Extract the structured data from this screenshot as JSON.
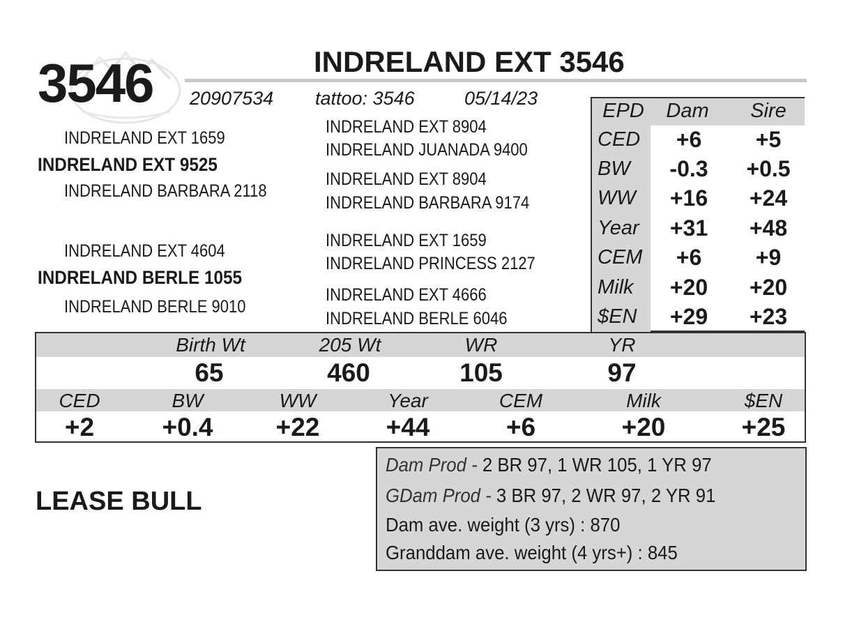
{
  "lot_number": "3546",
  "name": "INDRELAND EXT 3546",
  "registration": "20907534",
  "tattoo": "tattoo: 3546",
  "birth_date": "05/14/23",
  "pedigree": {
    "sire": "INDRELAND EXT 9525",
    "sire_sire": "INDRELAND EXT 1659",
    "sire_dam": "INDRELAND BARBARA 2118",
    "sire_sire_sire": "INDRELAND EXT 8904",
    "sire_sire_dam": "INDRELAND JUANADA 9400",
    "sire_dam_sire": "INDRELAND EXT 8904",
    "sire_dam_dam": "INDRELAND BARBARA 9174",
    "dam": "INDRELAND BERLE 1055",
    "dam_sire": "INDRELAND EXT 4604",
    "dam_dam": "INDRELAND BERLE 9010",
    "dam_sire_sire": "INDRELAND EXT 1659",
    "dam_sire_dam": "INDRELAND PRINCESS 2127",
    "dam_dam_sire": "INDRELAND EXT 4666",
    "dam_dam_dam": "INDRELAND BERLE 6046"
  },
  "epd_table": {
    "headers": [
      "EPD",
      "Dam",
      "Sire"
    ],
    "rows": [
      {
        "label": "CED",
        "dam": "+6",
        "sire": "+5"
      },
      {
        "label": "BW",
        "dam": "-0.3",
        "sire": "+0.5"
      },
      {
        "label": "WW",
        "dam": "+16",
        "sire": "+24"
      },
      {
        "label": "Year",
        "dam": "+31",
        "sire": "+48"
      },
      {
        "label": "CEM",
        "dam": "+6",
        "sire": "+9"
      },
      {
        "label": "Milk",
        "dam": "+20",
        "sire": "+20"
      },
      {
        "label": "$EN",
        "dam": "+29",
        "sire": "+23"
      }
    ]
  },
  "performance": {
    "headers": [
      "Birth Wt",
      "205 Wt",
      "WR",
      "YR"
    ],
    "values": [
      "65",
      "460",
      "105",
      "97"
    ]
  },
  "bull_epds": {
    "headers": [
      "CED",
      "BW",
      "WW",
      "Year",
      "CEM",
      "Milk",
      "$EN"
    ],
    "values": [
      "+2",
      "+0.4",
      "+22",
      "+44",
      "+6",
      "+20",
      "+25"
    ]
  },
  "status": "LEASE BULL",
  "production": {
    "dam_prod_label": "Dam Prod -",
    "dam_prod_value": "2 BR 97, 1 WR 105, 1 YR 97",
    "gdam_prod_label": "GDam Prod -",
    "gdam_prod_value": "3 BR 97, 2 WR 97, 2 YR 91",
    "dam_ave_weight": "Dam ave. weight (3 yrs) : 870",
    "granddam_ave_weight": "Granddam ave. weight (4 yrs+) : 845"
  },
  "colors": {
    "shade": "#d6d6d6",
    "text": "#1a1a1a",
    "border": "#333333"
  }
}
